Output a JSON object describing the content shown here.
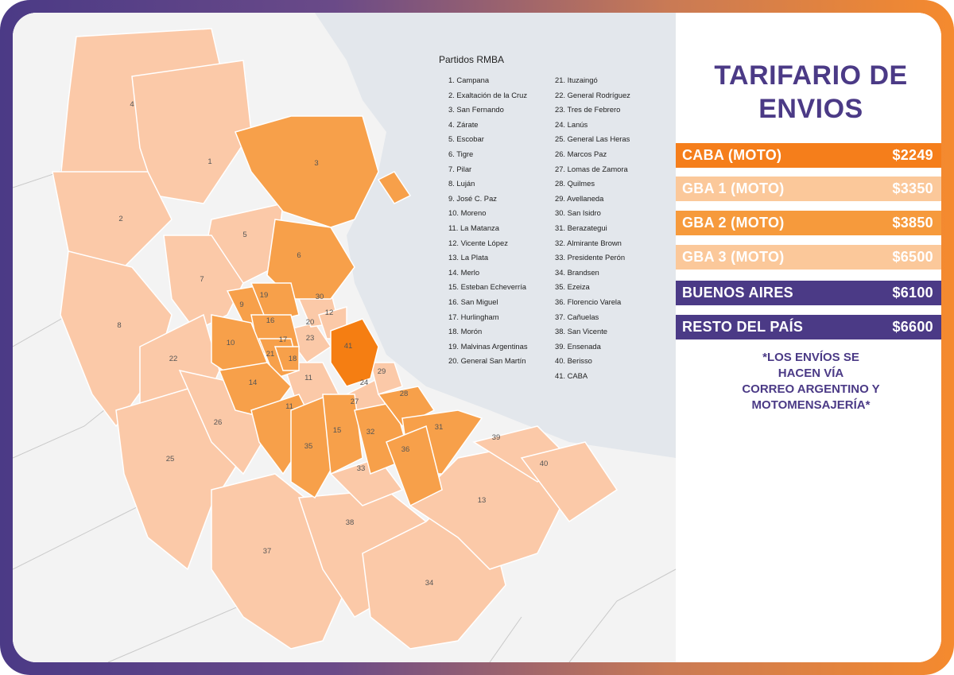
{
  "title_lines": [
    "TARIFARIO DE",
    "ENVIOS"
  ],
  "rates": [
    {
      "label": "CABA (MOTO)",
      "price": "$2249",
      "bg": "#f57e1b",
      "fg": "#ffffff"
    },
    {
      "label": "GBA 1 (MOTO)",
      "price": "$3350",
      "bg": "#fbc89a",
      "fg": "#ffffff"
    },
    {
      "label": "GBA 2 (MOTO)",
      "price": "$3850",
      "bg": "#f69a3c",
      "fg": "#ffffff"
    },
    {
      "label": "GBA 3 (MOTO)",
      "price": "$6500",
      "bg": "#fbc89a",
      "fg": "#ffffff"
    },
    {
      "label": "BUENOS AIRES",
      "price": "$6100",
      "bg": "#4b3a86",
      "fg": "#ffffff"
    },
    {
      "label": "RESTO DEL PAÍS",
      "price": "$6600",
      "bg": "#4b3a86",
      "fg": "#ffffff"
    }
  ],
  "note_lines": [
    "*LOS ENVÍOS SE",
    "HACEN VÍA",
    "CORREO ARGENTINO Y",
    "MOTOMENSAJERÍA*"
  ],
  "legend": {
    "title": "Partidos RMBA",
    "col1": [
      "1. Campana",
      "2. Exaltación de la Cruz",
      "3. San Fernando",
      "4. Zárate",
      "5. Escobar",
      "6. Tigre",
      "7. Pilar",
      "8. Luján",
      "9. José C. Paz",
      "10. Moreno",
      "11. La Matanza",
      "12. Vicente López",
      "13. La Plata",
      "14. Merlo",
      "15. Esteban Echeverría",
      "16. San Miguel",
      "17. Hurlingham",
      "18. Morón",
      "19. Malvinas Argentinas",
      "20. General San Martín"
    ],
    "col2": [
      "21. Ituzaingó",
      "22. General Rodríguez",
      "23. Tres de Febrero",
      "24. Lanús",
      "25. General Las Heras",
      "26. Marcos Paz",
      "27. Lomas de Zamora",
      "28. Quilmes",
      "29. Avellaneda",
      "30. San Isidro",
      "31. Berazategui",
      "32. Almirante Brown",
      "33. Presidente Perón",
      "34. Brandsen",
      "35. Ezeiza",
      "36. Florencio Varela",
      "37. Cañuelas",
      "38. San Vicente",
      "39. Ensenada",
      "40. Berisso",
      "41. CABA"
    ]
  },
  "map_labels": [
    "1",
    "2",
    "3",
    "4",
    "5",
    "6",
    "7",
    "8",
    "9",
    "10",
    "11",
    "11",
    "12",
    "13",
    "14",
    "15",
    "16",
    "17",
    "18",
    "19",
    "20",
    "21",
    "22",
    "23",
    "24",
    "25",
    "26",
    "27",
    "28",
    "29",
    "30",
    "31",
    "32",
    "33",
    "34",
    "35",
    "36",
    "37",
    "38",
    "39",
    "40",
    "41"
  ],
  "colors": {
    "light": "#fbc9a8",
    "mid": "#f7a04a",
    "dark": "#f57e12",
    "water": "#e3e7ec",
    "land": "#f3f3f3",
    "purple": "#4b3a86"
  }
}
